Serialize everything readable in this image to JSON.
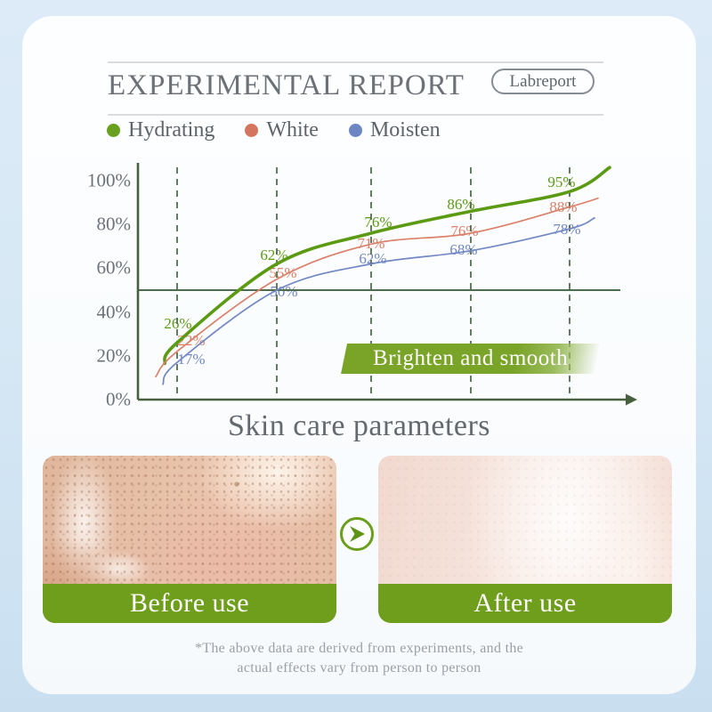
{
  "header": {
    "title": "EXPERIMENTAL REPORT",
    "badge_label": "Labreport"
  },
  "chart_data": {
    "type": "line",
    "title": "EXPERIMENTAL REPORT",
    "xlabel": "Skin care parameters",
    "ylabel": "",
    "ylim": [
      0,
      100
    ],
    "y_ticks": [
      "100%",
      "80%",
      "60%",
      "40%",
      "20%",
      "0%"
    ],
    "x_gridlines": 5,
    "grid": "vertical-dashed",
    "reference_line_pct": 50,
    "legend_position": "top",
    "series": [
      {
        "name": "Hydrating",
        "color": "#5c9a14",
        "dot_color": "#69a01f",
        "width": 3.6,
        "values": [
          26,
          62,
          76,
          86,
          95
        ],
        "labels": [
          "26%",
          "62%",
          "76%",
          "86%",
          "95%"
        ]
      },
      {
        "name": "White",
        "color": "#db8069",
        "dot_color": "#d4765f",
        "width": 1.7,
        "values": [
          22,
          55,
          71,
          76,
          88
        ],
        "labels": [
          "22%",
          "55%",
          "71%",
          "76%",
          "88%"
        ]
      },
      {
        "name": "Moisten",
        "color": "#7287c4",
        "dot_color": "#6d86c3",
        "width": 1.7,
        "values": [
          17,
          50,
          62,
          68,
          78
        ],
        "labels": [
          "17%",
          "50%",
          "62%",
          "68%",
          "78%"
        ]
      }
    ]
  },
  "banner": {
    "label": "Brighten and smooth",
    "color": "#7aa428"
  },
  "comparison": {
    "before_label": "Before use",
    "after_label": "After use",
    "bar_color": "#6f9e1d",
    "arrow_icon": "chevron-right-icon"
  },
  "disclaimer": {
    "line1": "*The above data are derived from experiments, and the",
    "line2": "actual effects vary from person to person"
  }
}
